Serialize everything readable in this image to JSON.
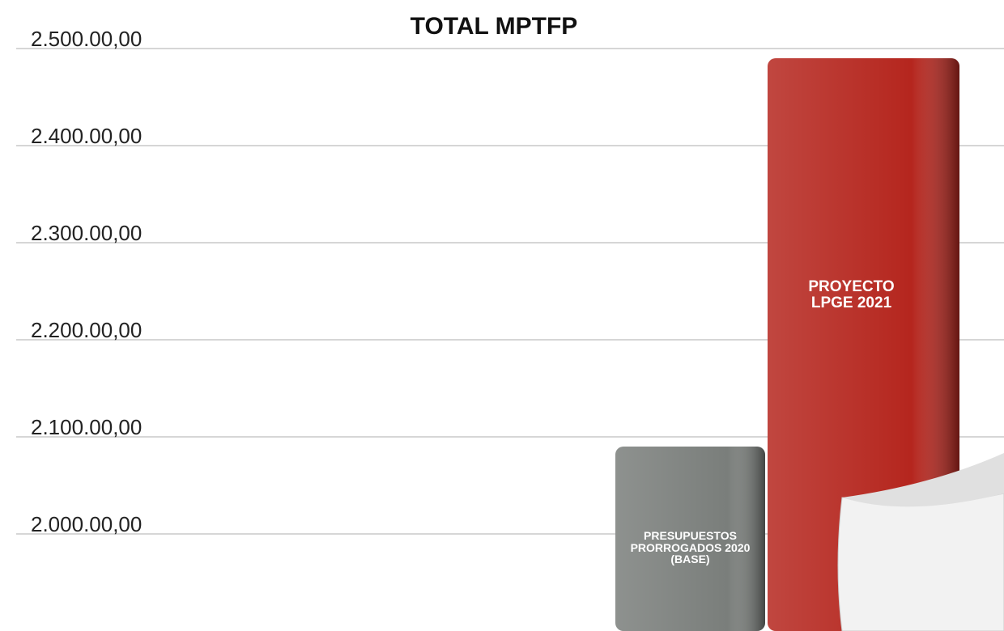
{
  "chart_data": {
    "type": "bar",
    "title": "TOTAL MPTFP",
    "categories": [
      "PRESUPUESTOS PRORROGADOS 2020 (BASE)",
      "PROYECTO LPGE 2021"
    ],
    "values": [
      209000,
      249000
    ],
    "colors": [
      "#7a7e7b",
      "#b5261e"
    ],
    "ylim": [
      190000,
      255000
    ],
    "yticks": [
      {
        "value": 200000,
        "label": "2.000.00,00"
      },
      {
        "value": 210000,
        "label": "2.100.00,00"
      },
      {
        "value": 220000,
        "label": "2.200.00,00"
      },
      {
        "value": 230000,
        "label": "2.300.00,00"
      },
      {
        "value": 240000,
        "label": "2.400.00,00"
      },
      {
        "value": 250000,
        "label": "2.500.00,00"
      }
    ],
    "grid": true
  }
}
